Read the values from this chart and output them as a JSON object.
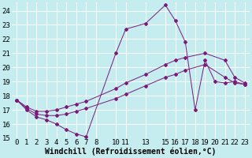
{
  "xlabel": "Windchill (Refroidissement éolien,°C)",
  "bg_color": "#c5ecee",
  "line_color": "#7b1a7b",
  "xlim": [
    -0.5,
    23.5
  ],
  "ylim": [
    15,
    24.6
  ],
  "xticks": [
    0,
    1,
    2,
    3,
    4,
    5,
    6,
    7,
    8,
    10,
    11,
    13,
    15,
    16,
    17,
    18,
    19,
    20,
    21,
    22,
    23
  ],
  "yticks": [
    15,
    16,
    17,
    18,
    19,
    20,
    21,
    22,
    23,
    24
  ],
  "series1_x": [
    0,
    1,
    2,
    3,
    4,
    5,
    6,
    7,
    10,
    11,
    13,
    15,
    16,
    17,
    18,
    19,
    20,
    21,
    22,
    23
  ],
  "series1_y": [
    17.7,
    17.0,
    16.5,
    16.3,
    16.0,
    15.6,
    15.3,
    15.1,
    21.0,
    22.7,
    23.1,
    24.4,
    23.3,
    21.8,
    17.0,
    20.5,
    19.0,
    18.9,
    19.0,
    18.8
  ],
  "series2_x": [
    0,
    1,
    2,
    3,
    4,
    5,
    6,
    7,
    10,
    11,
    13,
    15,
    16,
    17,
    19,
    21,
    22,
    23
  ],
  "series2_y": [
    17.7,
    17.2,
    16.9,
    16.9,
    17.0,
    17.2,
    17.4,
    17.6,
    18.5,
    18.9,
    19.5,
    20.2,
    20.5,
    20.7,
    21.0,
    20.5,
    19.3,
    18.9
  ],
  "series3_x": [
    0,
    1,
    2,
    3,
    4,
    5,
    6,
    7,
    10,
    11,
    13,
    15,
    16,
    17,
    19,
    21,
    22,
    23
  ],
  "series3_y": [
    17.7,
    17.1,
    16.7,
    16.6,
    16.6,
    16.7,
    16.9,
    17.1,
    17.8,
    18.1,
    18.7,
    19.3,
    19.5,
    19.8,
    20.2,
    19.3,
    18.9,
    18.8
  ],
  "grid_color": "#ffffff",
  "font": "monospace",
  "tick_fontsize": 6.5,
  "xlabel_fontsize": 7
}
